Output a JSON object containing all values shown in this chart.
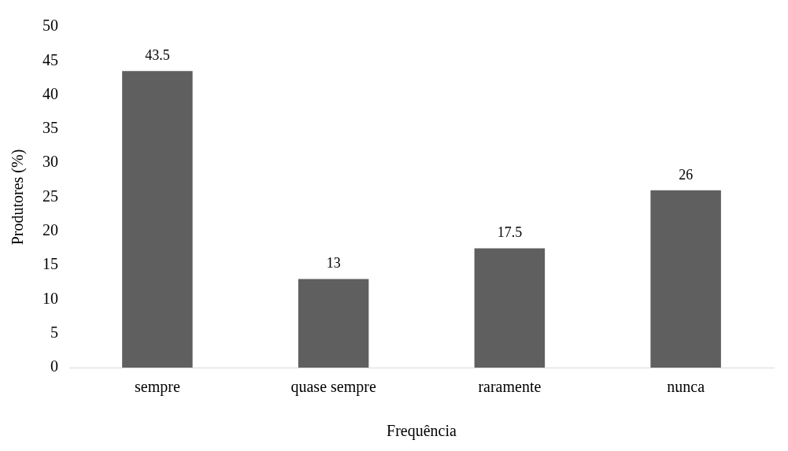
{
  "chart_data": {
    "type": "bar",
    "xlabel": "Frequência",
    "ylabel": "Produtores (%)",
    "categories": [
      "sempre",
      "quase sempre",
      "raramente",
      "nunca"
    ],
    "values": [
      43.5,
      13,
      17.5,
      26
    ],
    "color": "#5f5f5f",
    "ylim": [
      0,
      50
    ],
    "yticks": [
      0,
      5,
      10,
      15,
      20,
      25,
      30,
      35,
      40,
      45,
      50
    ],
    "grid": false,
    "legend": false,
    "data_labels": true
  }
}
